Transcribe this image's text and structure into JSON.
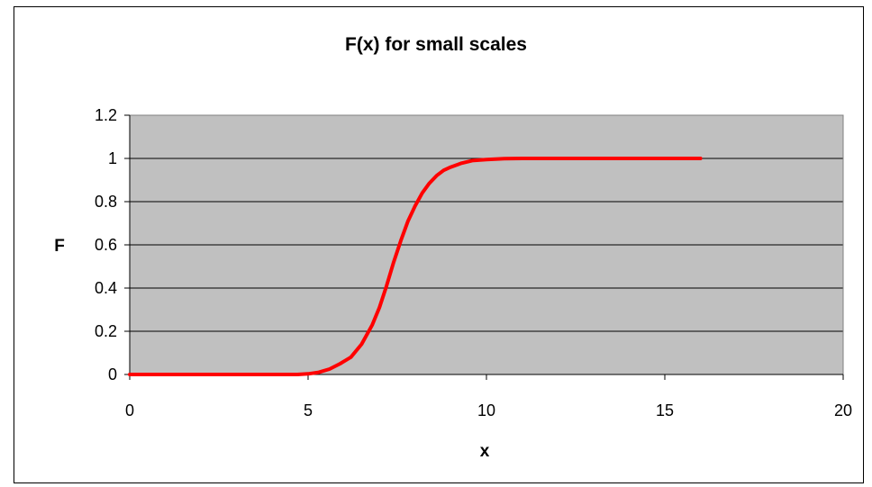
{
  "chart_data": {
    "type": "line",
    "title": "F(x) for small scales",
    "xlabel": "x",
    "ylabel": "F",
    "xlim": [
      0,
      20
    ],
    "ylim": [
      0,
      1.2
    ],
    "x_ticks": [
      "0",
      "5",
      "10",
      "15",
      "20"
    ],
    "y_ticks": [
      "0",
      "0.2",
      "0.4",
      "0.6",
      "0.8",
      "1",
      "1.2"
    ],
    "grid": "horizontal",
    "legend": "none",
    "plot_background": "#c0c0c0",
    "series": [
      {
        "color": "#ff0000",
        "x": [
          0,
          1,
          2,
          3,
          4,
          4.7,
          5.0,
          5.3,
          5.6,
          5.9,
          6.2,
          6.5,
          6.8,
          7.0,
          7.2,
          7.4,
          7.6,
          7.8,
          8.0,
          8.2,
          8.4,
          8.6,
          8.8,
          9.0,
          9.3,
          9.6,
          10.0,
          10.5,
          11,
          12,
          13,
          14,
          15,
          16
        ],
        "y": [
          0,
          0,
          0,
          0,
          0,
          0.0,
          0.003,
          0.01,
          0.025,
          0.05,
          0.08,
          0.14,
          0.23,
          0.31,
          0.41,
          0.52,
          0.62,
          0.71,
          0.78,
          0.84,
          0.885,
          0.92,
          0.945,
          0.96,
          0.978,
          0.99,
          0.995,
          0.999,
          1,
          1,
          1,
          1,
          1,
          1
        ]
      }
    ]
  }
}
